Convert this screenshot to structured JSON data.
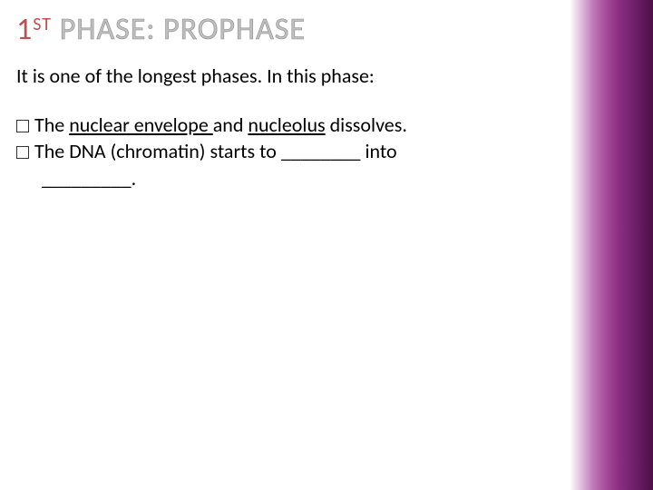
{
  "title": {
    "one": "1",
    "st": "ST",
    "rest": " PHASE: PROPHASE"
  },
  "intro": "It is one of the longest phases.  In this phase:",
  "bullets": {
    "b1_prefix": "The ",
    "b1_u1": "nuclear envelope ",
    "b1_mid": "and ",
    "b1_u2": "nucleolus",
    "b1_suffix": " dissolves.",
    "b2_prefix": "The DNA (chromatin) starts to ",
    "b2_blank1": "________",
    "b2_mid": " into",
    "b2_blank2": "_________",
    "b2_suffix": "."
  },
  "colors": {
    "title_fill": "#c0504d",
    "title_outline": "#bfbfbf",
    "text": "#000000",
    "gradient_start": "#ffffff",
    "gradient_end": "#4e0f48"
  },
  "fonts": {
    "title_size_pt": 34,
    "body_size_pt": 22
  }
}
